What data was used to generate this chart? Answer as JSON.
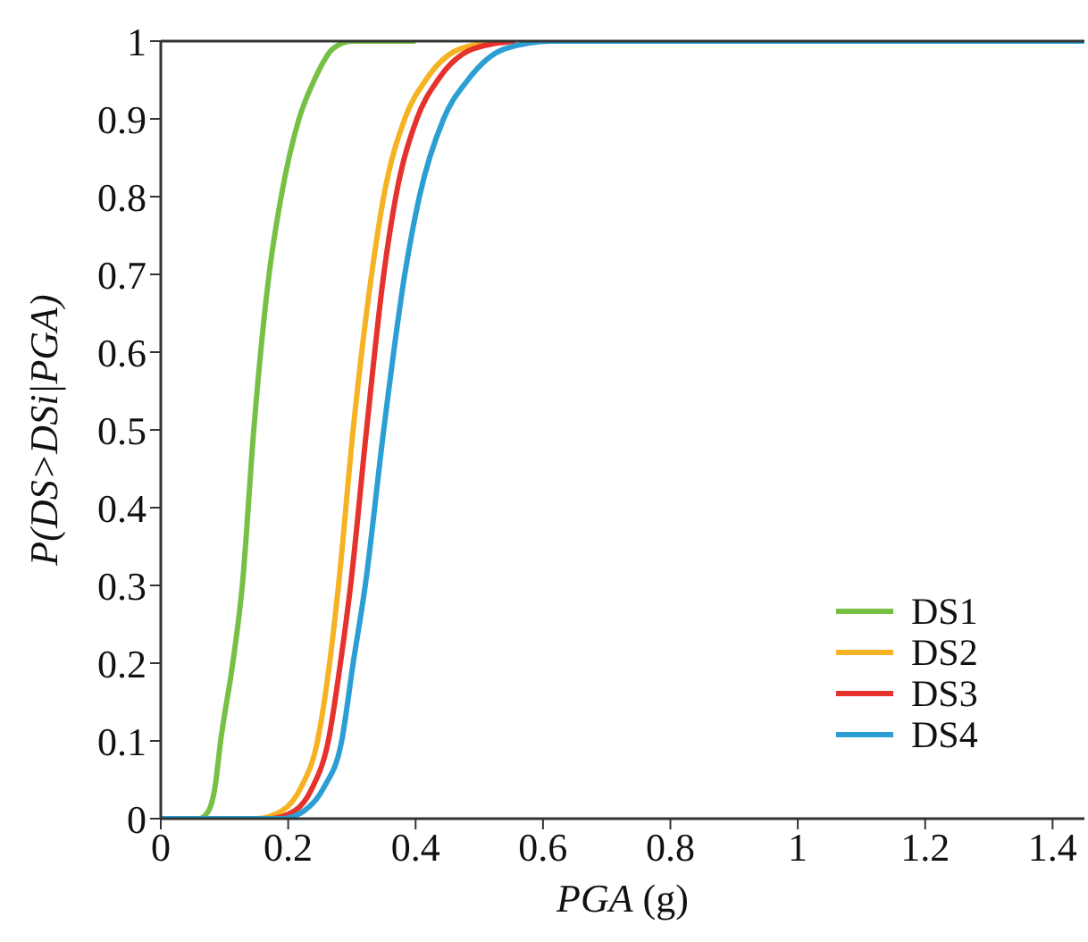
{
  "chart_data": {
    "type": "line",
    "xlabel": "PGA (g)",
    "ylabel": "P(DS>DSi|PGA)",
    "xlim": [
      0,
      1.45
    ],
    "ylim": [
      0,
      1
    ],
    "xticks": [
      0,
      0.2,
      0.4,
      0.6,
      0.8,
      1,
      1.2,
      1.4
    ],
    "yticks": [
      0,
      0.1,
      0.2,
      0.3,
      0.4,
      0.5,
      0.6,
      0.7,
      0.8,
      0.9,
      1
    ],
    "grid": false,
    "legend": "bottom right",
    "marker": "none",
    "line_style": "solid",
    "series": [
      {
        "name": "DS1",
        "color": "#77c046",
        "x": [
          0,
          0.06,
          0.075,
          0.085,
          0.094,
          0.113,
          0.128,
          0.146,
          0.17,
          0.189,
          0.217,
          0.241,
          0.27,
          0.3,
          0.4
        ],
        "values": [
          0,
          0,
          0.01,
          0.04,
          0.1,
          0.2,
          0.3,
          0.5,
          0.7,
          0.8,
          0.9,
          0.95,
          0.99,
          1,
          1
        ]
      },
      {
        "name": "DS2",
        "color": "#f5b324",
        "x": [
          0,
          0.15,
          0.19,
          0.22,
          0.246,
          0.265,
          0.279,
          0.302,
          0.331,
          0.35,
          0.383,
          0.416,
          0.47,
          0.54
        ],
        "values": [
          0,
          0,
          0.01,
          0.04,
          0.1,
          0.2,
          0.3,
          0.5,
          0.7,
          0.8,
          0.9,
          0.95,
          0.99,
          1
        ]
      },
      {
        "name": "DS3",
        "color": "#e5322d",
        "x": [
          0,
          0.17,
          0.21,
          0.238,
          0.263,
          0.282,
          0.298,
          0.323,
          0.35,
          0.369,
          0.402,
          0.435,
          0.49,
          0.557
        ],
        "values": [
          0,
          0,
          0.01,
          0.04,
          0.1,
          0.2,
          0.3,
          0.5,
          0.7,
          0.8,
          0.9,
          0.95,
          0.99,
          1
        ]
      },
      {
        "name": "DS4",
        "color": "#2b9fd3",
        "x": [
          0,
          0.19,
          0.225,
          0.256,
          0.284,
          0.302,
          0.321,
          0.35,
          0.383,
          0.406,
          0.444,
          0.482,
          0.54,
          0.614,
          0.75,
          1.45
        ],
        "values": [
          0,
          0,
          0.01,
          0.04,
          0.1,
          0.2,
          0.3,
          0.5,
          0.7,
          0.8,
          0.9,
          0.95,
          0.99,
          1,
          1,
          1
        ]
      }
    ]
  }
}
